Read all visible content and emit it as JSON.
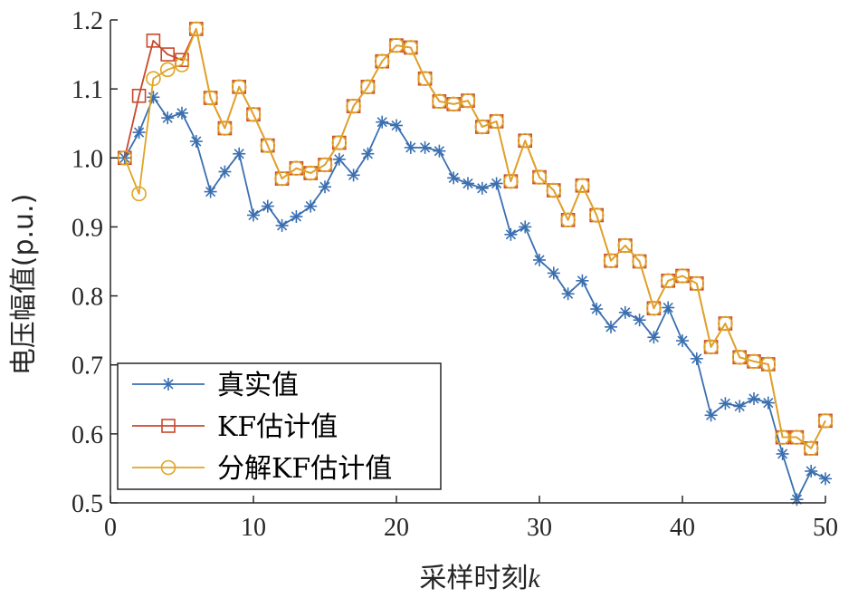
{
  "chart_data": {
    "type": "line",
    "title": "",
    "xlabel": "采样时刻k",
    "xlabel_main": "采样时刻",
    "xlabel_var": "k",
    "ylabel": "电压幅值(p.u.)",
    "xlim": [
      0,
      50
    ],
    "ylim": [
      0.5,
      1.2
    ],
    "xticks": [
      0,
      10,
      20,
      30,
      40,
      50
    ],
    "yticks": [
      0.5,
      0.6,
      0.7,
      0.8,
      0.9,
      1.0,
      1.1,
      1.2
    ],
    "ytick_labels": [
      "0.5",
      "0.6",
      "0.7",
      "0.8",
      "0.9",
      "1.0",
      "1.1",
      "1.2"
    ],
    "grid": false,
    "legend_position": "lower-left",
    "x": [
      1,
      2,
      3,
      4,
      5,
      6,
      7,
      8,
      9,
      10,
      11,
      12,
      13,
      14,
      15,
      16,
      17,
      18,
      19,
      20,
      21,
      22,
      23,
      24,
      25,
      26,
      27,
      28,
      29,
      30,
      31,
      32,
      33,
      34,
      35,
      36,
      37,
      38,
      39,
      40,
      41,
      42,
      43,
      44,
      45,
      46,
      47,
      48,
      49,
      50
    ],
    "series": [
      {
        "name": "真实值",
        "color": "#3a6fb0",
        "marker": "star",
        "values": [
          1.0,
          1.037,
          1.088,
          1.058,
          1.065,
          1.024,
          0.951,
          0.98,
          1.006,
          0.917,
          0.93,
          0.902,
          0.915,
          0.93,
          0.958,
          0.998,
          0.975,
          1.006,
          1.052,
          1.047,
          1.015,
          1.015,
          1.01,
          0.971,
          0.963,
          0.956,
          0.963,
          0.889,
          0.9,
          0.852,
          0.833,
          0.803,
          0.822,
          0.781,
          0.755,
          0.776,
          0.765,
          0.74,
          0.783,
          0.735,
          0.709,
          0.627,
          0.644,
          0.64,
          0.651,
          0.645,
          0.571,
          0.505,
          0.546,
          0.535
        ]
      },
      {
        "name": "KF估计值",
        "color": "#c9482b",
        "marker": "square",
        "values": [
          1.0,
          1.09,
          1.17,
          1.15,
          1.142,
          1.187,
          1.087,
          1.043,
          1.103,
          1.063,
          1.018,
          0.97,
          0.985,
          0.978,
          0.99,
          1.022,
          1.075,
          1.103,
          1.14,
          1.163,
          1.16,
          1.115,
          1.082,
          1.078,
          1.083,
          1.045,
          1.053,
          0.966,
          1.025,
          0.972,
          0.953,
          0.91,
          0.96,
          0.917,
          0.851,
          0.873,
          0.85,
          0.782,
          0.822,
          0.829,
          0.818,
          0.726,
          0.76,
          0.711,
          0.705,
          0.701,
          0.595,
          0.595,
          0.579,
          0.619
        ]
      },
      {
        "name": "分解KF估计值",
        "color": "#e0a424",
        "marker": "circle",
        "values": [
          1.0,
          0.948,
          1.115,
          1.128,
          1.135,
          1.187,
          1.087,
          1.043,
          1.103,
          1.063,
          1.018,
          0.97,
          0.985,
          0.978,
          0.99,
          1.022,
          1.075,
          1.103,
          1.14,
          1.163,
          1.16,
          1.115,
          1.082,
          1.078,
          1.083,
          1.045,
          1.053,
          0.966,
          1.025,
          0.972,
          0.953,
          0.91,
          0.96,
          0.917,
          0.851,
          0.873,
          0.85,
          0.782,
          0.822,
          0.829,
          0.818,
          0.726,
          0.76,
          0.711,
          0.705,
          0.701,
          0.595,
          0.595,
          0.579,
          0.619
        ]
      }
    ]
  }
}
